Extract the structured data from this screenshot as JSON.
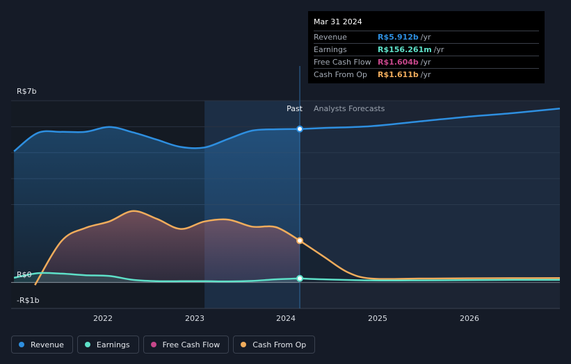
{
  "chart_data": {
    "type": "area",
    "title": "",
    "xlabel": "",
    "ylabel": "",
    "x_ticks": [
      "2022",
      "2023",
      "2024",
      "2025",
      "2026"
    ],
    "y_ticks": {
      "top": "R$7b",
      "zero": "R$0",
      "bottom": "-R$1b"
    },
    "ylim": [
      -1.0,
      7.0
    ],
    "xlim": [
      2021.22,
      2026.98
    ],
    "divider_x": 2024.25,
    "highlight_start_x": 2023.25,
    "past_label": "Past",
    "forecast_label": "Analysts Forecasts",
    "series": [
      {
        "name": "Revenue",
        "color": "#2e8fe0",
        "values": [
          [
            2021.25,
            5.05
          ],
          [
            2021.5,
            5.76
          ],
          [
            2021.75,
            5.8
          ],
          [
            2022.0,
            5.8
          ],
          [
            2022.25,
            5.99
          ],
          [
            2022.5,
            5.78
          ],
          [
            2022.75,
            5.5
          ],
          [
            2023.0,
            5.22
          ],
          [
            2023.25,
            5.2
          ],
          [
            2023.5,
            5.53
          ],
          [
            2023.75,
            5.85
          ],
          [
            2024.0,
            5.9
          ],
          [
            2024.25,
            5.912
          ]
        ],
        "forecast": [
          [
            2024.25,
            5.912
          ],
          [
            2024.5,
            5.95
          ],
          [
            2025.0,
            6.02
          ],
          [
            2025.5,
            6.2
          ],
          [
            2026.0,
            6.38
          ],
          [
            2026.5,
            6.53
          ],
          [
            2026.98,
            6.7
          ]
        ]
      },
      {
        "name": "Earnings",
        "color": "#5ee0c8",
        "values": [
          [
            2021.25,
            0.18
          ],
          [
            2021.5,
            0.36
          ],
          [
            2021.75,
            0.34
          ],
          [
            2022.0,
            0.28
          ],
          [
            2022.25,
            0.25
          ],
          [
            2022.5,
            0.1
          ],
          [
            2022.75,
            0.05
          ],
          [
            2023.0,
            0.05
          ],
          [
            2023.25,
            0.05
          ],
          [
            2023.5,
            0.04
          ],
          [
            2023.75,
            0.06
          ],
          [
            2024.0,
            0.12
          ],
          [
            2024.25,
            0.156
          ]
        ],
        "forecast": [
          [
            2024.25,
            0.156
          ],
          [
            2024.5,
            0.12
          ],
          [
            2025.0,
            0.08
          ],
          [
            2025.5,
            0.08
          ],
          [
            2026.0,
            0.09
          ],
          [
            2026.5,
            0.1
          ],
          [
            2026.98,
            0.1
          ]
        ]
      },
      {
        "name": "Free Cash Flow",
        "color": "#c7478b",
        "values": [],
        "forecast": []
      },
      {
        "name": "Cash From Op",
        "color": "#f0ac5c",
        "values": [
          [
            2021.47,
            -0.1
          ],
          [
            2021.75,
            1.6
          ],
          [
            2022.0,
            2.1
          ],
          [
            2022.25,
            2.35
          ],
          [
            2022.5,
            2.75
          ],
          [
            2022.75,
            2.45
          ],
          [
            2023.0,
            2.06
          ],
          [
            2023.25,
            2.35
          ],
          [
            2023.5,
            2.42
          ],
          [
            2023.75,
            2.15
          ],
          [
            2024.0,
            2.13
          ],
          [
            2024.25,
            1.611
          ]
        ],
        "forecast": [
          [
            2024.25,
            1.611
          ],
          [
            2024.5,
            1.0
          ],
          [
            2024.75,
            0.4
          ],
          [
            2025.0,
            0.15
          ],
          [
            2025.5,
            0.15
          ],
          [
            2026.0,
            0.16
          ],
          [
            2026.98,
            0.17
          ]
        ]
      }
    ],
    "markers": [
      {
        "series": "Revenue",
        "x": 2024.25,
        "y": 5.912
      },
      {
        "series": "Earnings",
        "x": 2024.25,
        "y": 0.156
      },
      {
        "series": "Cash From Op",
        "x": 2024.25,
        "y": 1.611
      }
    ]
  },
  "tooltip": {
    "date": "Mar 31 2024",
    "rows": [
      {
        "name": "Revenue",
        "value": "R$5.912b",
        "unit": "/yr",
        "color": "#2e8fe0"
      },
      {
        "name": "Earnings",
        "value": "R$156.261m",
        "unit": "/yr",
        "color": "#5ee0c8"
      },
      {
        "name": "Free Cash Flow",
        "value": "R$1.604b",
        "unit": "/yr",
        "color": "#c7478b"
      },
      {
        "name": "Cash From Op",
        "value": "R$1.611b",
        "unit": "/yr",
        "color": "#f0ac5c"
      }
    ]
  },
  "legend": [
    {
      "label": "Revenue",
      "color": "#2e8fe0"
    },
    {
      "label": "Earnings",
      "color": "#5ee0c8"
    },
    {
      "label": "Free Cash Flow",
      "color": "#c7478b"
    },
    {
      "label": "Cash From Op",
      "color": "#f0ac5c"
    }
  ]
}
